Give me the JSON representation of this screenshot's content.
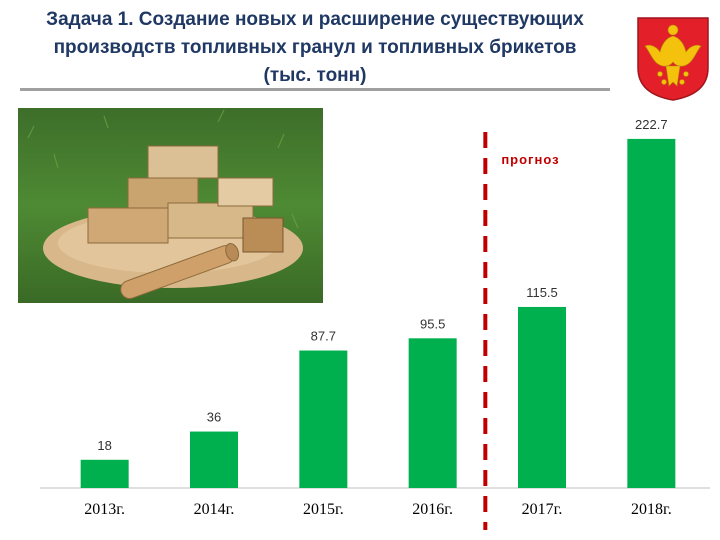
{
  "page": {
    "title": "Задача 1. Создание новых и расширение существующих\nпроизводств топливных гранул и топливных брикетов\n(тыс. тонн)"
  },
  "colors": {
    "title": "#1f3864",
    "bar": "#00b04f",
    "forecast_line": "#c00000",
    "coat_red": "#e3202a",
    "coat_gold": "#f4c20d"
  },
  "icons": {
    "coat_of_arms": "komi-coat-of-arms-icon",
    "photo": "fuel-briquettes-photo"
  },
  "chart_data": {
    "type": "bar",
    "categories": [
      "2013г.",
      "2014г.",
      "2015г.",
      "2016г.",
      "2017г.",
      "2018г."
    ],
    "values": [
      18,
      36,
      87.7,
      95.5,
      115.5,
      222.7
    ],
    "value_labels": [
      "18",
      "36",
      "87.7",
      "95.5",
      "115.5",
      "222.7"
    ],
    "ylim": [
      0,
      230
    ],
    "grid": false,
    "forecast": {
      "label": "прогноз",
      "starts_before_category": "2017г."
    }
  }
}
